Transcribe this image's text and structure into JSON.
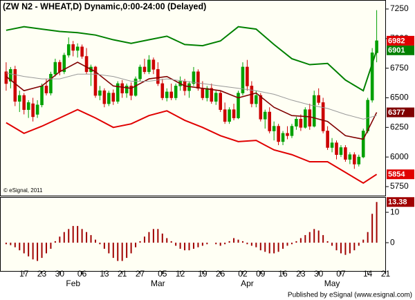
{
  "chart_data": [
    {
      "type": "candlestick",
      "title": "(ZW N2 - WHEAT,D) Dynamic,0:00-24:00 (Delayed)",
      "annotation": "© eSignal, 2011",
      "ylim": [
        5674,
        7320
      ],
      "yticks": [
        5750,
        6000,
        6250,
        6500,
        6750,
        7000,
        7250
      ],
      "up_color": "#00a000",
      "down_color": "#cc0000",
      "tag_color": "#e00000",
      "open": [
        6720,
        6640,
        6740,
        6470,
        6520,
        6400,
        6450,
        6360,
        6440,
        6600,
        6540,
        6700,
        6800,
        6720,
        6860,
        6950,
        6900,
        6930,
        6850,
        6720,
        6760,
        6520,
        6560,
        6450,
        6540,
        6470,
        6620,
        6540,
        6600,
        6520,
        6660,
        6760,
        6720,
        6820,
        6740,
        6620,
        6500,
        6550,
        6500,
        6600,
        6640,
        6560,
        6620,
        6720,
        6580,
        6500,
        6580,
        6470,
        6540,
        6400,
        6300,
        6400,
        6330,
        6540,
        6760,
        6600,
        6450,
        6520,
        6320,
        6380,
        6220,
        6260,
        6130,
        6200,
        6180,
        6260,
        6320,
        6250,
        6400,
        6260,
        6520,
        6460,
        6220,
        6080,
        6120,
        6020,
        6080,
        5980,
        6020,
        5940,
        6000,
        6220,
        6480,
        6880
      ],
      "high": [
        6800,
        6760,
        6770,
        6560,
        6540,
        6480,
        6500,
        6480,
        6620,
        6660,
        6720,
        6830,
        6820,
        6880,
        7010,
        6980,
        6960,
        6950,
        6920,
        6780,
        6770,
        6600,
        6580,
        6560,
        6570,
        6640,
        6650,
        6620,
        6630,
        6680,
        6780,
        6830,
        6860,
        6840,
        6800,
        6660,
        6580,
        6620,
        6620,
        6680,
        6660,
        6640,
        6760,
        6740,
        6640,
        6600,
        6620,
        6560,
        6560,
        6460,
        6420,
        6450,
        6560,
        6800,
        6820,
        6640,
        6560,
        6540,
        6400,
        6420,
        6300,
        6280,
        6220,
        6260,
        6280,
        6340,
        6360,
        6420,
        6450,
        6560,
        6580,
        6500,
        6260,
        6160,
        6140,
        6100,
        6100,
        6040,
        6040,
        6020,
        6240,
        6500,
        6920,
        7240
      ],
      "low": [
        6560,
        6580,
        6430,
        6380,
        6360,
        6330,
        6300,
        6330,
        6420,
        6520,
        6520,
        6680,
        6690,
        6700,
        6840,
        6850,
        6840,
        6830,
        6700,
        6600,
        6500,
        6480,
        6420,
        6430,
        6440,
        6450,
        6500,
        6500,
        6480,
        6510,
        6640,
        6700,
        6700,
        6700,
        6600,
        6480,
        6470,
        6480,
        6480,
        6560,
        6520,
        6500,
        6600,
        6560,
        6480,
        6470,
        6450,
        6440,
        6380,
        6280,
        6280,
        6310,
        6320,
        6520,
        6560,
        6420,
        6420,
        6300,
        6240,
        6200,
        6140,
        6100,
        6100,
        6150,
        6160,
        6230,
        6220,
        6240,
        6230,
        6250,
        6440,
        6200,
        6060,
        6040,
        5980,
        6000,
        5960,
        5940,
        5900,
        5920,
        5990,
        6200,
        6460,
        6800
      ],
      "close": [
        6620,
        6740,
        6470,
        6520,
        6400,
        6460,
        6340,
        6440,
        6600,
        6540,
        6700,
        6800,
        6720,
        6860,
        6950,
        6900,
        6930,
        6850,
        6720,
        6760,
        6520,
        6560,
        6450,
        6540,
        6470,
        6620,
        6540,
        6600,
        6520,
        6660,
        6760,
        6720,
        6820,
        6740,
        6620,
        6500,
        6550,
        6500,
        6600,
        6640,
        6560,
        6620,
        6720,
        6580,
        6500,
        6580,
        6470,
        6540,
        6400,
        6300,
        6400,
        6330,
        6540,
        6760,
        6600,
        6450,
        6520,
        6320,
        6380,
        6220,
        6260,
        6130,
        6200,
        6180,
        6260,
        6320,
        6250,
        6400,
        6260,
        6520,
        6460,
        6220,
        6080,
        6120,
        6020,
        6080,
        5980,
        6020,
        5940,
        6000,
        6220,
        6480,
        6880,
        6982
      ],
      "series": [
        {
          "color": "#008000",
          "last_value_tag": true,
          "x": [
            0,
            4,
            8,
            12,
            16,
            20,
            24,
            28,
            32,
            36,
            40,
            44,
            48,
            52,
            56,
            60,
            64,
            68,
            72,
            76,
            80,
            83
          ],
          "values": [
            7070,
            7100,
            7080,
            7060,
            7050,
            7030,
            6990,
            6960,
            6990,
            7020,
            6950,
            6940,
            6980,
            7100,
            7080,
            6950,
            6830,
            6780,
            6790,
            6650,
            6560,
            6901
          ]
        },
        {
          "color": "#e00000",
          "last_value_tag": true,
          "x": [
            0,
            4,
            8,
            12,
            16,
            20,
            24,
            28,
            32,
            36,
            40,
            44,
            48,
            52,
            56,
            60,
            64,
            68,
            72,
            76,
            80,
            83
          ],
          "values": [
            6290,
            6200,
            6260,
            6330,
            6400,
            6330,
            6250,
            6280,
            6350,
            6390,
            6310,
            6250,
            6180,
            6130,
            6140,
            6060,
            6020,
            5960,
            5960,
            5870,
            5780,
            5854
          ]
        },
        {
          "color": "#800000",
          "last_value_tag": true,
          "x": [
            0,
            4,
            8,
            12,
            16,
            20,
            24,
            28,
            32,
            36,
            40,
            44,
            48,
            52,
            56,
            60,
            64,
            68,
            72,
            76,
            80,
            83
          ],
          "values": [
            6680,
            6560,
            6600,
            6720,
            6800,
            6720,
            6600,
            6580,
            6660,
            6680,
            6600,
            6580,
            6560,
            6500,
            6540,
            6420,
            6350,
            6340,
            6300,
            6180,
            6150,
            6377
          ]
        },
        {
          "color": "#999999",
          "last_value_tag": false,
          "x": [
            0,
            4,
            8,
            12,
            16,
            20,
            24,
            28,
            32,
            36,
            40,
            44,
            48,
            52,
            56,
            60,
            64,
            68,
            72,
            76,
            80,
            83
          ],
          "values": [
            6710,
            6680,
            6660,
            6660,
            6700,
            6700,
            6680,
            6640,
            6640,
            6660,
            6640,
            6620,
            6600,
            6580,
            6560,
            6530,
            6480,
            6440,
            6410,
            6360,
            6320,
            6350
          ]
        }
      ]
    },
    {
      "type": "bar",
      "color": "#a00000",
      "ylim": [
        -9.3,
        14.8
      ],
      "yticks": [
        0,
        10
      ],
      "xlim": [
        -1.3,
        85
      ],
      "xticks": [
        {
          "value": 4,
          "label": "17"
        },
        {
          "value": 8,
          "label": "23"
        },
        {
          "value": 12,
          "label": "30"
        },
        {
          "value": 17,
          "label": "06"
        },
        {
          "value": 22,
          "label": "13"
        },
        {
          "value": 26,
          "label": "21"
        },
        {
          "value": 30,
          "label": "27"
        },
        {
          "value": 35,
          "label": "05"
        },
        {
          "value": 39,
          "label": "12"
        },
        {
          "value": 44,
          "label": "19"
        },
        {
          "value": 48,
          "label": "26"
        },
        {
          "value": 53,
          "label": "02"
        },
        {
          "value": 57,
          "label": "09"
        },
        {
          "value": 62,
          "label": "16"
        },
        {
          "value": 66,
          "label": "23"
        },
        {
          "value": 70,
          "label": "30"
        },
        {
          "value": 75,
          "label": "07"
        },
        {
          "value": 81,
          "label": "14"
        },
        {
          "value": 85,
          "label": "21"
        }
      ],
      "month_ticks": [
        {
          "value": 15,
          "label": "Feb"
        },
        {
          "value": 34,
          "label": "Mar"
        },
        {
          "value": 54,
          "label": "Apr"
        },
        {
          "value": 73,
          "label": "May"
        }
      ],
      "values": [
        -0.5,
        -0.8,
        -1.5,
        -2.5,
        -3.5,
        -4.5,
        -5.5,
        -6,
        -5,
        -3.5,
        -2,
        0.5,
        2,
        3.5,
        4.5,
        5.5,
        5.5,
        4.5,
        3.5,
        2.5,
        1,
        -0.5,
        -2,
        -3.5,
        -5,
        -6,
        -6,
        -5,
        -3.5,
        -1.5,
        0.5,
        2,
        3.5,
        4.5,
        4.5,
        3,
        1.5,
        0.5,
        -1,
        -2,
        -2.5,
        -2.5,
        -2,
        -1.5,
        -1,
        -0.5,
        0,
        -0.5,
        -1,
        -0.5,
        0.5,
        1.5,
        1,
        0.5,
        -0.5,
        -1,
        -1.5,
        -2.5,
        -3,
        -3.5,
        -3.5,
        -3,
        -2,
        -1,
        -0.5,
        0.5,
        1.5,
        2.5,
        3.5,
        4.5,
        4,
        2.5,
        0.5,
        -1,
        -2.5,
        -3.5,
        -4,
        -3.5,
        -2.5,
        -1,
        1,
        3.5,
        9.5,
        13.38
      ]
    }
  ],
  "footer": "Published by eSignal (www.esignal.com)"
}
